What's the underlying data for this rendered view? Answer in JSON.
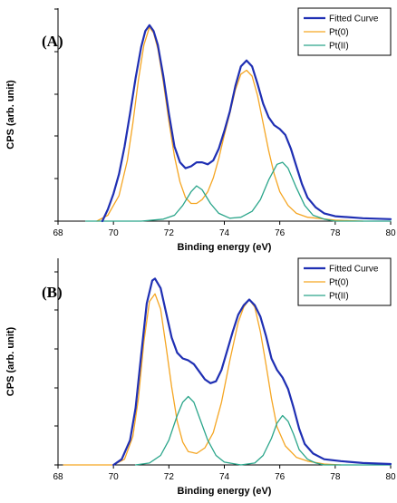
{
  "colors": {
    "fitted": "#1f2fb3",
    "pt0": "#f5a623",
    "pt2": "#2aa58a",
    "axis": "#000000"
  },
  "chart_data": [
    {
      "type": "line",
      "panel_label": "(A)",
      "xlabel": "Binding energy (eV)",
      "ylabel": "CPS (arb. unit)",
      "xlim": [
        68,
        80
      ],
      "x_ticks": [
        "68",
        "70",
        "72",
        "74",
        "76",
        "78",
        "80"
      ],
      "y_ticks_labeled": false,
      "grid": false,
      "legend_position": "top-right",
      "legend_frame": true,
      "series": [
        {
          "name": "Fitted Curve",
          "color_key": "fitted",
          "points": [
            [
              69.6,
              0.0
            ],
            [
              69.8,
              0.06
            ],
            [
              70.0,
              0.14
            ],
            [
              70.2,
              0.24
            ],
            [
              70.4,
              0.38
            ],
            [
              70.6,
              0.55
            ],
            [
              70.8,
              0.73
            ],
            [
              71.0,
              0.89
            ],
            [
              71.15,
              0.97
            ],
            [
              71.3,
              1.0
            ],
            [
              71.45,
              0.97
            ],
            [
              71.6,
              0.9
            ],
            [
              71.8,
              0.74
            ],
            [
              72.0,
              0.55
            ],
            [
              72.2,
              0.38
            ],
            [
              72.4,
              0.3
            ],
            [
              72.6,
              0.27
            ],
            [
              72.8,
              0.28
            ],
            [
              73.0,
              0.3
            ],
            [
              73.2,
              0.3
            ],
            [
              73.4,
              0.29
            ],
            [
              73.6,
              0.31
            ],
            [
              73.8,
              0.37
            ],
            [
              74.0,
              0.46
            ],
            [
              74.2,
              0.56
            ],
            [
              74.4,
              0.69
            ],
            [
              74.6,
              0.79
            ],
            [
              74.8,
              0.82
            ],
            [
              75.0,
              0.79
            ],
            [
              75.2,
              0.7
            ],
            [
              75.4,
              0.6
            ],
            [
              75.6,
              0.53
            ],
            [
              75.8,
              0.49
            ],
            [
              76.0,
              0.47
            ],
            [
              76.2,
              0.44
            ],
            [
              76.4,
              0.37
            ],
            [
              76.6,
              0.28
            ],
            [
              76.8,
              0.19
            ],
            [
              77.0,
              0.12
            ],
            [
              77.3,
              0.07
            ],
            [
              77.6,
              0.04
            ],
            [
              78.0,
              0.025
            ],
            [
              79.0,
              0.015
            ],
            [
              80.0,
              0.01
            ]
          ]
        },
        {
          "name": "Pt(0)",
          "color_key": "pt0",
          "points": [
            [
              69.4,
              0.0
            ],
            [
              69.8,
              0.03
            ],
            [
              70.2,
              0.13
            ],
            [
              70.5,
              0.31
            ],
            [
              70.7,
              0.5
            ],
            [
              70.9,
              0.72
            ],
            [
              71.1,
              0.9
            ],
            [
              71.3,
              0.99
            ],
            [
              71.45,
              0.96
            ],
            [
              71.6,
              0.88
            ],
            [
              71.8,
              0.71
            ],
            [
              72.0,
              0.51
            ],
            [
              72.2,
              0.33
            ],
            [
              72.4,
              0.2
            ],
            [
              72.6,
              0.12
            ],
            [
              72.8,
              0.09
            ],
            [
              73.0,
              0.09
            ],
            [
              73.2,
              0.11
            ],
            [
              73.4,
              0.15
            ],
            [
              73.6,
              0.22
            ],
            [
              73.8,
              0.32
            ],
            [
              74.0,
              0.44
            ],
            [
              74.2,
              0.55
            ],
            [
              74.4,
              0.67
            ],
            [
              74.6,
              0.75
            ],
            [
              74.8,
              0.77
            ],
            [
              75.0,
              0.74
            ],
            [
              75.2,
              0.64
            ],
            [
              75.4,
              0.5
            ],
            [
              75.6,
              0.36
            ],
            [
              75.8,
              0.24
            ],
            [
              76.0,
              0.15
            ],
            [
              76.3,
              0.08
            ],
            [
              76.6,
              0.04
            ],
            [
              77.0,
              0.02
            ],
            [
              78.0,
              0.005
            ],
            [
              79.0,
              0.0
            ]
          ]
        },
        {
          "name": "Pt(II)",
          "color_key": "pt2",
          "points": [
            [
              69.0,
              0.0
            ],
            [
              71.0,
              0.0
            ],
            [
              71.8,
              0.01
            ],
            [
              72.2,
              0.03
            ],
            [
              72.5,
              0.08
            ],
            [
              72.8,
              0.15
            ],
            [
              73.0,
              0.18
            ],
            [
              73.2,
              0.16
            ],
            [
              73.5,
              0.09
            ],
            [
              73.8,
              0.04
            ],
            [
              74.2,
              0.015
            ],
            [
              74.6,
              0.02
            ],
            [
              75.0,
              0.05
            ],
            [
              75.3,
              0.11
            ],
            [
              75.6,
              0.21
            ],
            [
              75.9,
              0.29
            ],
            [
              76.1,
              0.3
            ],
            [
              76.3,
              0.27
            ],
            [
              76.6,
              0.17
            ],
            [
              76.9,
              0.08
            ],
            [
              77.2,
              0.03
            ],
            [
              77.6,
              0.01
            ],
            [
              78.0,
              0.0
            ],
            [
              80.0,
              0.0
            ]
          ]
        }
      ]
    },
    {
      "type": "line",
      "panel_label": "(B)",
      "xlabel": "Binding energy (eV)",
      "ylabel": "CPS (arb. unit)",
      "xlim": [
        68,
        80
      ],
      "x_ticks": [
        "68",
        "70",
        "72",
        "74",
        "76",
        "78",
        "80"
      ],
      "y_ticks_labeled": false,
      "grid": false,
      "legend_position": "top-right",
      "legend_frame": true,
      "series": [
        {
          "name": "Fitted Curve",
          "color_key": "fitted",
          "points": [
            [
              70.0,
              0.0
            ],
            [
              70.3,
              0.03
            ],
            [
              70.6,
              0.13
            ],
            [
              70.8,
              0.3
            ],
            [
              71.0,
              0.58
            ],
            [
              71.2,
              0.85
            ],
            [
              71.4,
              0.97
            ],
            [
              71.5,
              0.98
            ],
            [
              71.7,
              0.93
            ],
            [
              71.9,
              0.8
            ],
            [
              72.1,
              0.67
            ],
            [
              72.3,
              0.59
            ],
            [
              72.5,
              0.56
            ],
            [
              72.7,
              0.55
            ],
            [
              72.9,
              0.53
            ],
            [
              73.1,
              0.49
            ],
            [
              73.3,
              0.45
            ],
            [
              73.5,
              0.43
            ],
            [
              73.7,
              0.44
            ],
            [
              73.9,
              0.5
            ],
            [
              74.1,
              0.6
            ],
            [
              74.3,
              0.7
            ],
            [
              74.5,
              0.79
            ],
            [
              74.7,
              0.84
            ],
            [
              74.9,
              0.87
            ],
            [
              75.1,
              0.84
            ],
            [
              75.3,
              0.78
            ],
            [
              75.5,
              0.68
            ],
            [
              75.7,
              0.56
            ],
            [
              75.9,
              0.5
            ],
            [
              76.1,
              0.46
            ],
            [
              76.3,
              0.4
            ],
            [
              76.5,
              0.3
            ],
            [
              76.7,
              0.19
            ],
            [
              76.9,
              0.11
            ],
            [
              77.2,
              0.06
            ],
            [
              77.6,
              0.03
            ],
            [
              78.2,
              0.02
            ],
            [
              79.0,
              0.01
            ],
            [
              80.0,
              0.005
            ]
          ]
        },
        {
          "name": "Pt(0)",
          "color_key": "pt0",
          "points": [
            [
              68.2,
              0.0
            ],
            [
              70.0,
              0.0
            ],
            [
              70.4,
              0.03
            ],
            [
              70.7,
              0.15
            ],
            [
              70.9,
              0.35
            ],
            [
              71.1,
              0.65
            ],
            [
              71.3,
              0.86
            ],
            [
              71.5,
              0.9
            ],
            [
              71.7,
              0.82
            ],
            [
              71.9,
              0.62
            ],
            [
              72.1,
              0.41
            ],
            [
              72.3,
              0.23
            ],
            [
              72.5,
              0.12
            ],
            [
              72.7,
              0.07
            ],
            [
              73.0,
              0.06
            ],
            [
              73.3,
              0.09
            ],
            [
              73.6,
              0.17
            ],
            [
              73.9,
              0.33
            ],
            [
              74.2,
              0.55
            ],
            [
              74.5,
              0.75
            ],
            [
              74.7,
              0.83
            ],
            [
              74.9,
              0.87
            ],
            [
              75.1,
              0.83
            ],
            [
              75.3,
              0.7
            ],
            [
              75.5,
              0.53
            ],
            [
              75.7,
              0.35
            ],
            [
              75.9,
              0.2
            ],
            [
              76.2,
              0.1
            ],
            [
              76.6,
              0.04
            ],
            [
              77.0,
              0.02
            ],
            [
              77.6,
              0.005
            ],
            [
              78.2,
              0.0
            ]
          ]
        },
        {
          "name": "Pt(II)",
          "color_key": "pt2",
          "points": [
            [
              70.8,
              0.0
            ],
            [
              71.3,
              0.01
            ],
            [
              71.7,
              0.05
            ],
            [
              72.0,
              0.13
            ],
            [
              72.3,
              0.26
            ],
            [
              72.5,
              0.33
            ],
            [
              72.7,
              0.36
            ],
            [
              72.9,
              0.33
            ],
            [
              73.1,
              0.25
            ],
            [
              73.4,
              0.13
            ],
            [
              73.7,
              0.05
            ],
            [
              74.0,
              0.015
            ],
            [
              74.6,
              0.0
            ],
            [
              75.1,
              0.01
            ],
            [
              75.4,
              0.05
            ],
            [
              75.7,
              0.14
            ],
            [
              75.9,
              0.22
            ],
            [
              76.1,
              0.26
            ],
            [
              76.3,
              0.23
            ],
            [
              76.5,
              0.16
            ],
            [
              76.7,
              0.08
            ],
            [
              77.0,
              0.03
            ],
            [
              77.3,
              0.01
            ],
            [
              77.6,
              0.0
            ],
            [
              80.0,
              0.0
            ]
          ]
        }
      ]
    }
  ]
}
